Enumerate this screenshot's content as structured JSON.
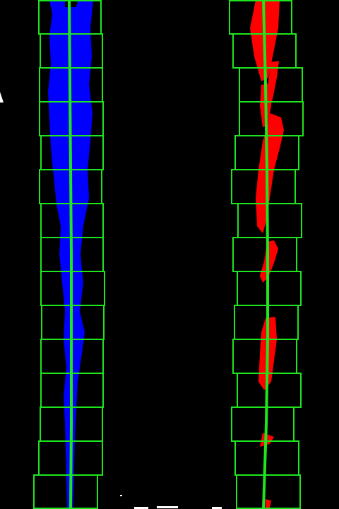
{
  "image_kind": "lane-line sliding-window visualization (bird's-eye view)",
  "colors": {
    "background": "#000000",
    "window_box": "#1ee61e",
    "fit_line": "#1ee61e",
    "left_lane_pixels": "#0000ff",
    "right_lane_pixels": "#ff0000",
    "misc_white": "#ffffff"
  },
  "windows": {
    "count_per_lane": 15
  },
  "lanes": [
    {
      "name": "left",
      "pixel_color_key": "left_lane_pixels"
    },
    {
      "name": "right",
      "pixel_color_key": "right_lane_pixels"
    }
  ]
}
